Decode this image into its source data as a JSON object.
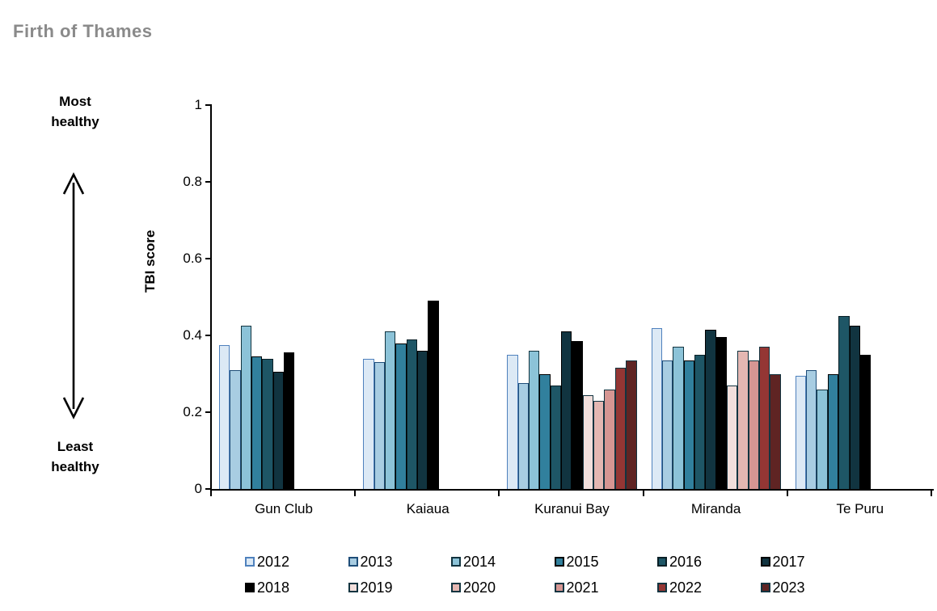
{
  "title": "Firth of Thames",
  "annotations": {
    "top_scale_label": "Most healthy",
    "bottom_scale_label": "Least healthy"
  },
  "chart_data": {
    "type": "bar",
    "title": "Firth of Thames",
    "xlabel": "",
    "ylabel": "TBI score",
    "ylim": [
      0,
      1
    ],
    "ytick_labels": [
      "1",
      "0.8",
      "0.6",
      "0.4",
      "0.2",
      "0"
    ],
    "ytick_values": [
      1,
      0.8,
      0.6,
      0.4,
      0.2,
      0
    ],
    "grid": false,
    "legend_position": "bottom",
    "categories": [
      "Gun Club",
      "Kaiaua",
      "Kuranui Bay",
      "Miranda",
      "Te Puru"
    ],
    "series": [
      {
        "name": "2012",
        "fill": "#dce9f5",
        "border": "#4f81bd",
        "values": [
          0.375,
          0.34,
          0.35,
          0.42,
          0.295
        ]
      },
      {
        "name": "2013",
        "fill": "#a8cde2",
        "border": "#1f4e79",
        "values": [
          0.31,
          0.33,
          0.275,
          0.335,
          0.31
        ]
      },
      {
        "name": "2014",
        "fill": "#8cc3d8",
        "border": "#123440",
        "values": [
          0.425,
          0.41,
          0.36,
          0.37,
          0.26
        ]
      },
      {
        "name": "2015",
        "fill": "#31809d",
        "border": "#000000",
        "values": [
          0.345,
          0.38,
          0.3,
          0.335,
          0.3
        ]
      },
      {
        "name": "2016",
        "fill": "#1e5666",
        "border": "#091f26",
        "values": [
          0.34,
          0.39,
          0.27,
          0.35,
          0.45
        ]
      },
      {
        "name": "2017",
        "fill": "#113440",
        "border": "#000000",
        "values": [
          0.305,
          0.36,
          0.41,
          0.415,
          0.425
        ]
      },
      {
        "name": "2018",
        "fill": "#000000",
        "border": "#000000",
        "values": [
          0.355,
          0.49,
          0.385,
          0.395,
          0.35
        ]
      },
      {
        "name": "2019",
        "fill": "#f2dfdc",
        "border": "#123440",
        "values": [
          null,
          null,
          0.245,
          0.27,
          null
        ]
      },
      {
        "name": "2020",
        "fill": "#e4b7b2",
        "border": "#123440",
        "values": [
          null,
          null,
          0.23,
          0.36,
          null
        ]
      },
      {
        "name": "2021",
        "fill": "#d69693",
        "border": "#123440",
        "values": [
          null,
          null,
          0.26,
          0.335,
          null
        ]
      },
      {
        "name": "2022",
        "fill": "#943634",
        "border": "#123440",
        "values": [
          null,
          null,
          0.315,
          0.37,
          null
        ]
      },
      {
        "name": "2023",
        "fill": "#5f2423",
        "border": "#123440",
        "values": [
          null,
          null,
          0.335,
          0.3,
          null
        ]
      }
    ]
  },
  "layout_colors": {
    "title_gray": "#8a8a8a",
    "axis_black": "#000000"
  }
}
